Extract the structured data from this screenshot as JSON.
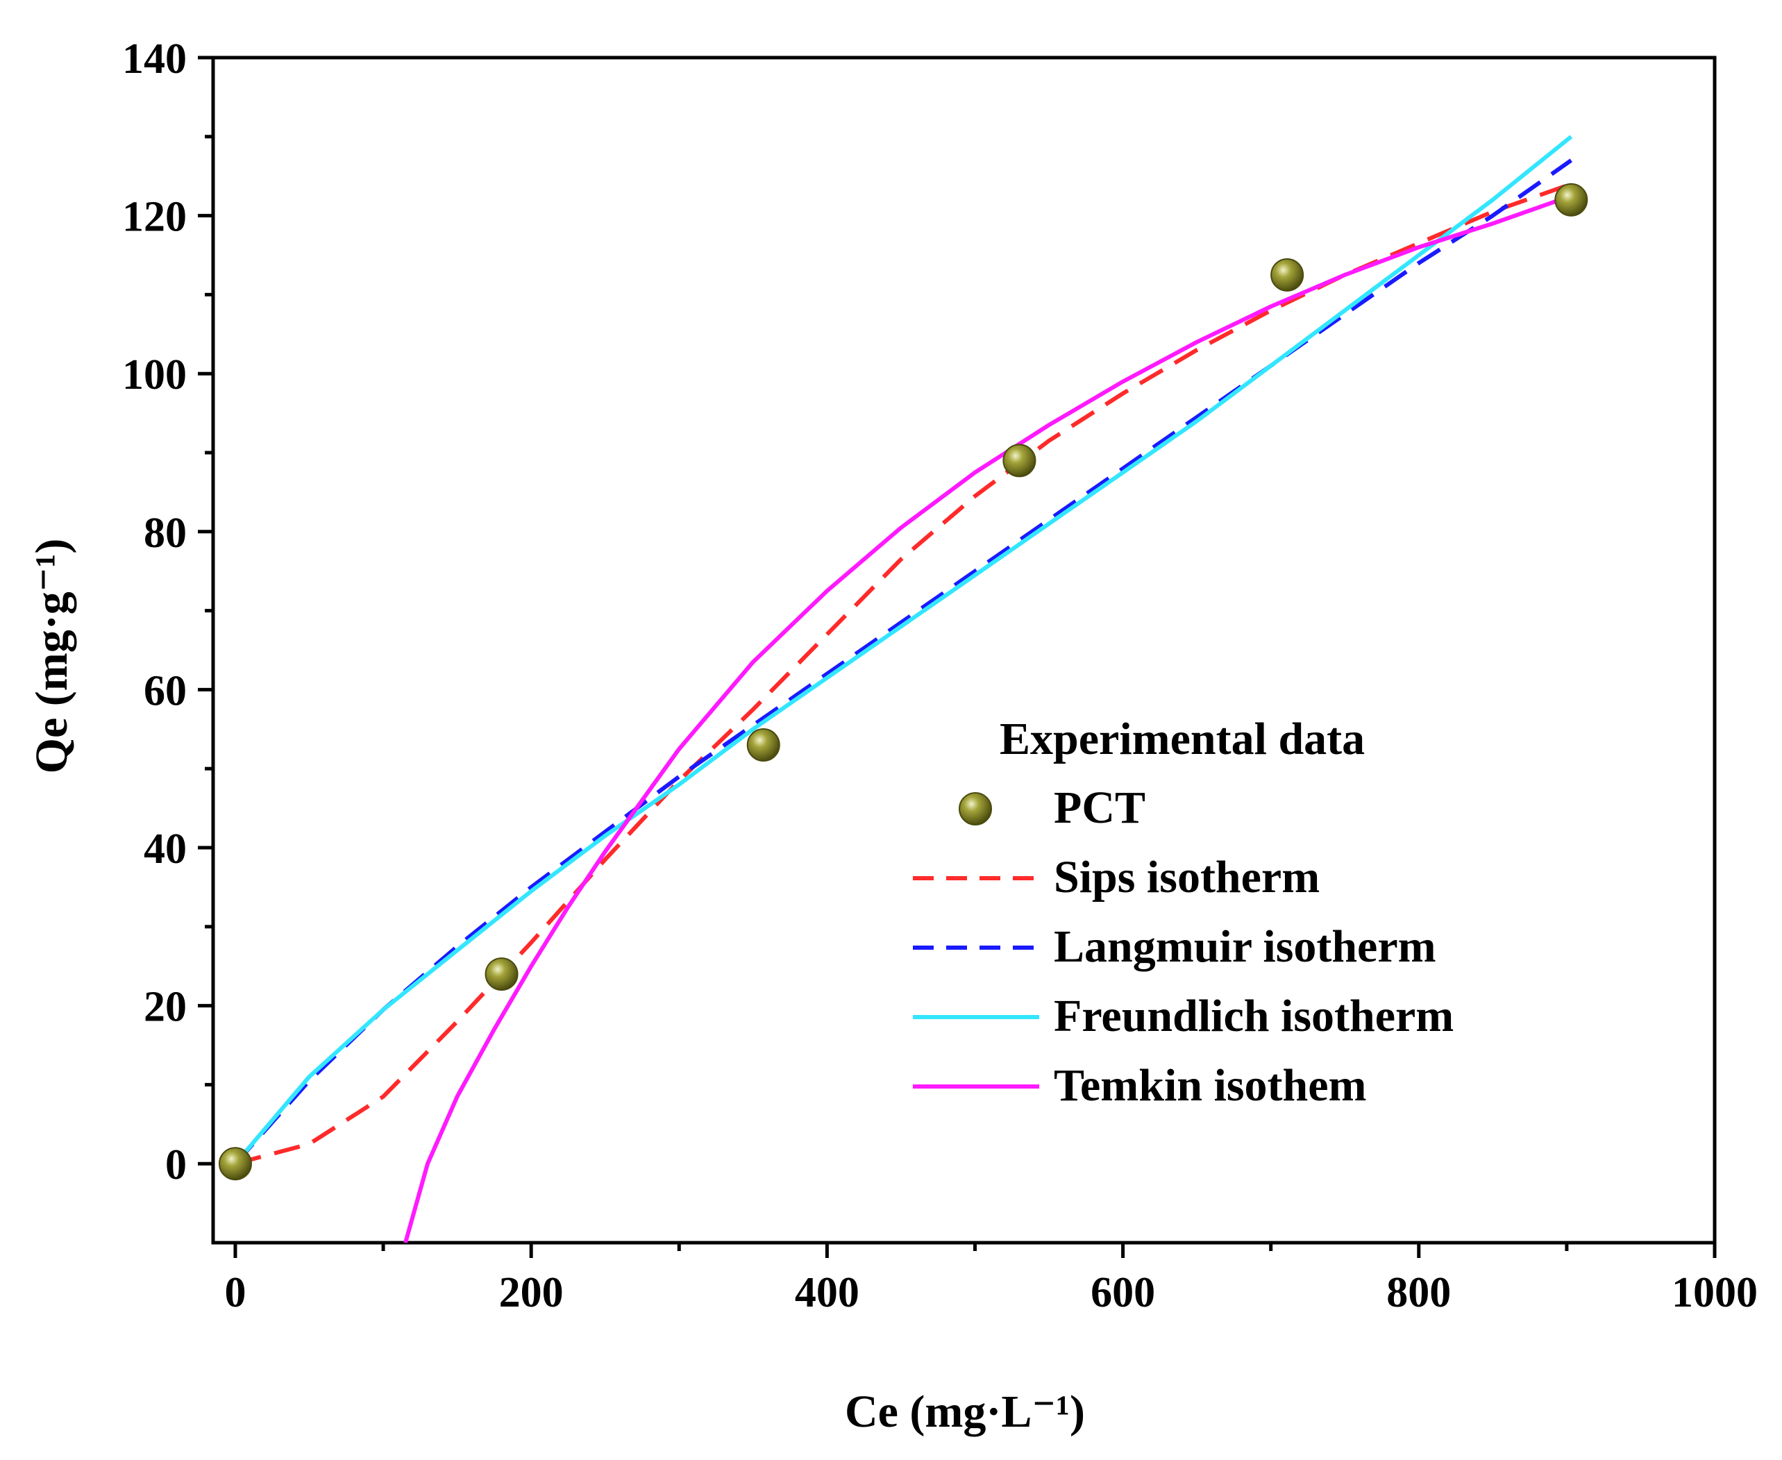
{
  "chart_data": {
    "type": "scatter",
    "title": "",
    "xlabel": "Ce (mg·L⁻¹)",
    "ylabel": "Qe (mg·g⁻¹)",
    "xlim": [
      -15,
      1000
    ],
    "ylim": [
      -10,
      140
    ],
    "xticks": [
      0,
      200,
      400,
      600,
      800,
      1000
    ],
    "yticks": [
      0,
      20,
      40,
      60,
      80,
      100,
      120,
      140
    ],
    "grid": false,
    "legend": {
      "title": "Experimental data",
      "placement": "center-right"
    },
    "scatter_series": [
      {
        "name": "PCT",
        "color": "#7a7a1c",
        "x": [
          0,
          180,
          357,
          530,
          711,
          903
        ],
        "y": [
          0,
          24,
          53,
          89,
          112.5,
          122
        ]
      }
    ],
    "line_series": [
      {
        "name": "Sips isotherm",
        "color": "#ff2a2a",
        "style": "dashed",
        "x": [
          0,
          50,
          100,
          150,
          200,
          250,
          300,
          350,
          400,
          450,
          500,
          550,
          600,
          650,
          700,
          750,
          800,
          850,
          903
        ],
        "y": [
          0,
          2.5,
          8.5,
          18,
          28,
          38.5,
          48.5,
          57.5,
          67,
          76.5,
          84.5,
          91.5,
          97.5,
          103,
          108,
          112.5,
          116.5,
          120.5,
          124
        ]
      },
      {
        "name": "Langmuir isotherm",
        "color": "#1a1aff",
        "style": "dashed",
        "x": [
          0,
          50,
          100,
          150,
          200,
          250,
          300,
          350,
          400,
          450,
          500,
          550,
          600,
          650,
          700,
          750,
          800,
          850,
          903
        ],
        "y": [
          0,
          10.5,
          19.5,
          27.5,
          35,
          42,
          49,
          55.5,
          62,
          68.5,
          75,
          81.5,
          88,
          94.5,
          101,
          107.5,
          114,
          120,
          127
        ]
      },
      {
        "name": "Freundlich isotherm",
        "color": "#33e6ff",
        "style": "solid",
        "x": [
          0,
          50,
          100,
          150,
          200,
          250,
          300,
          350,
          400,
          450,
          500,
          550,
          600,
          650,
          700,
          750,
          800,
          850,
          903
        ],
        "y": [
          0,
          11,
          19.5,
          27,
          34.5,
          41.5,
          48,
          55,
          61.5,
          68,
          74.5,
          81,
          87.5,
          94,
          101,
          108,
          115,
          122,
          130
        ]
      },
      {
        "name": "Temkin isothem",
        "color": "#ff1aff",
        "style": "solid",
        "x": [
          115,
          130,
          150,
          175,
          200,
          225,
          250,
          300,
          350,
          400,
          450,
          500,
          550,
          600,
          650,
          700,
          750,
          800,
          850,
          903
        ],
        "y": [
          -10,
          0,
          8.5,
          17,
          25,
          32.5,
          39.5,
          52.5,
          63.5,
          72.5,
          80.5,
          87.5,
          93.5,
          99,
          104,
          108.5,
          112.5,
          116,
          119,
          122.5
        ]
      }
    ]
  }
}
